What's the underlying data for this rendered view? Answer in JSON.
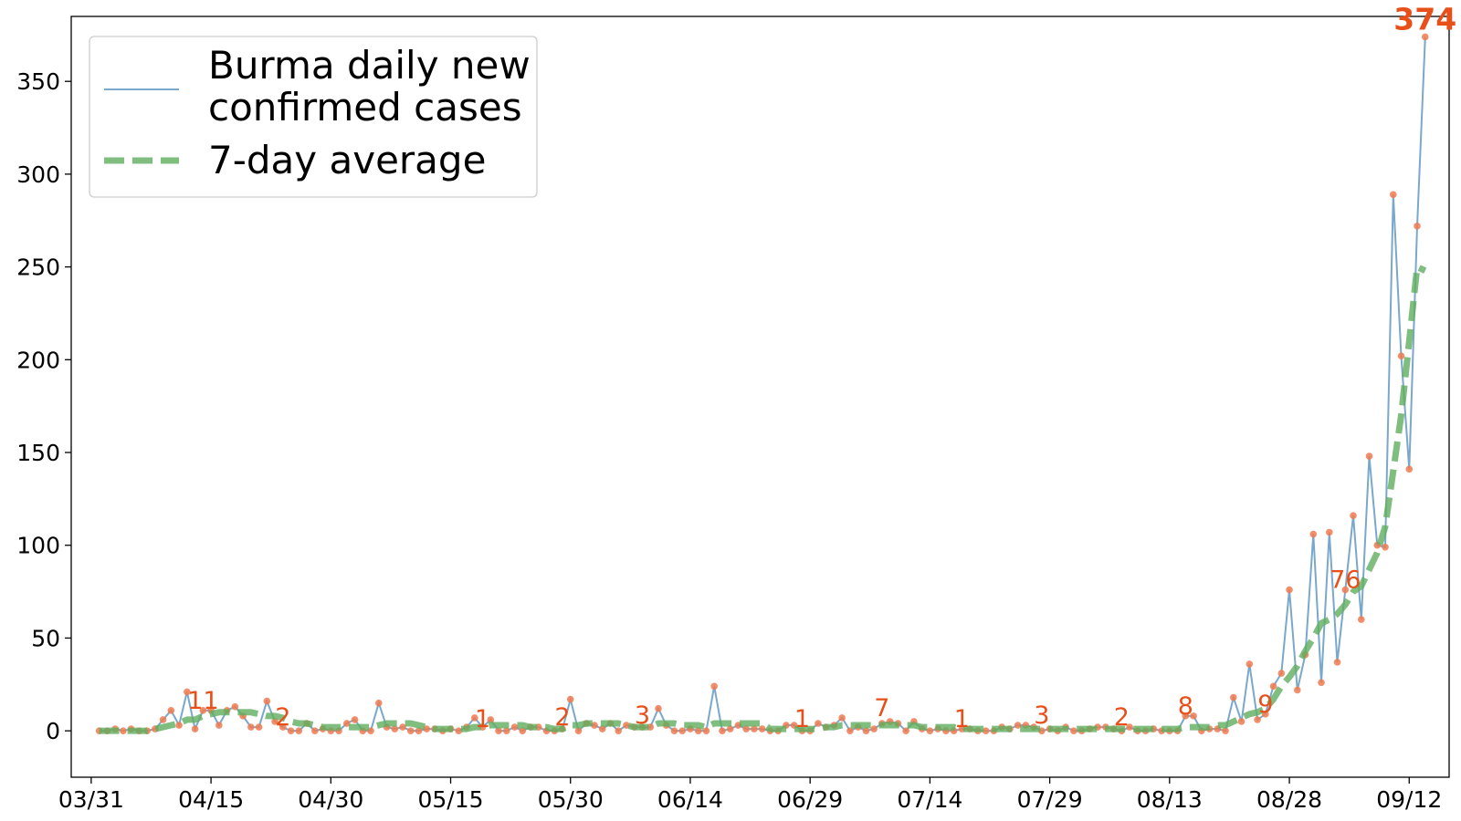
{
  "chart_data": {
    "type": "line",
    "title": "",
    "xlabel": "",
    "ylabel": "",
    "x_start": "03/31",
    "x_ticks": [
      "03/31",
      "04/15",
      "04/30",
      "05/15",
      "05/30",
      "06/14",
      "06/29",
      "07/14",
      "07/29",
      "08/13",
      "08/28",
      "09/12"
    ],
    "x_tick_day_step": 15,
    "ylim": [
      -25,
      385
    ],
    "y_ticks": [
      0,
      50,
      100,
      150,
      200,
      250,
      300,
      350
    ],
    "grid": false,
    "legend": {
      "placement": "top-left",
      "entries": [
        "Burma daily new\nconfirmed cases",
        "7-day average"
      ]
    },
    "colors": {
      "daily_line": "#7aa8cc",
      "marker": "#f07a50",
      "average": "#5fae5f",
      "annotation": "#e8501a"
    },
    "series": [
      {
        "name": "Burma daily new\nconfirmed cases",
        "x_day_offset_start": 1,
        "values": [
          0,
          0,
          1,
          0,
          1,
          0,
          0,
          1,
          6,
          11,
          3,
          21,
          1,
          11,
          11,
          3,
          11,
          13,
          8,
          2,
          2,
          16,
          5,
          2,
          0,
          0,
          4,
          0,
          1,
          0,
          0,
          4,
          6,
          0,
          0,
          15,
          2,
          1,
          2,
          0,
          0,
          1,
          1,
          0,
          1,
          0,
          2,
          7,
          2,
          6,
          0,
          0,
          2,
          0,
          2,
          2,
          0,
          0,
          1,
          17,
          0,
          4,
          3,
          1,
          4,
          0,
          3,
          2,
          2,
          2,
          12,
          3,
          0,
          0,
          1,
          0,
          0,
          24,
          0,
          1,
          3,
          1,
          1,
          1,
          0,
          0,
          3,
          3,
          0,
          0,
          4,
          2,
          3,
          7,
          0,
          2,
          0,
          1,
          4,
          5,
          4,
          0,
          5,
          1,
          0,
          1,
          0,
          0,
          1,
          1,
          0,
          0,
          0,
          2,
          1,
          3,
          3,
          2,
          0,
          1,
          0,
          2,
          0,
          0,
          1,
          2,
          2,
          1,
          0,
          2,
          0,
          0,
          1,
          0,
          0,
          0,
          8,
          8,
          0,
          1,
          1,
          0,
          18,
          5,
          36,
          6,
          9,
          24,
          31,
          76,
          22,
          41,
          106,
          26,
          107,
          37,
          76,
          116,
          60,
          148,
          100,
          99,
          289,
          202,
          141,
          272,
          374
        ]
      },
      {
        "name": "7-day average",
        "x_day_offset_start": 1,
        "values": [
          0,
          0,
          0,
          0,
          0,
          0,
          0,
          1,
          2,
          3,
          4,
          6,
          6,
          8,
          9,
          10,
          10,
          10,
          10,
          10,
          9,
          8,
          8,
          7,
          5,
          4,
          4,
          3,
          2,
          2,
          2,
          2,
          2,
          2,
          2,
          3,
          4,
          4,
          4,
          4,
          3,
          2,
          1,
          1,
          1,
          1,
          1,
          2,
          2,
          3,
          3,
          3,
          3,
          3,
          2,
          2,
          2,
          1,
          1,
          3,
          3,
          4,
          4,
          4,
          4,
          4,
          3,
          2,
          2,
          2,
          4,
          4,
          4,
          3,
          3,
          3,
          2,
          4,
          4,
          4,
          4,
          4,
          4,
          4,
          1,
          1,
          1,
          1,
          1,
          1,
          1,
          2,
          2,
          3,
          3,
          3,
          3,
          3,
          3,
          3,
          3,
          3,
          3,
          2,
          2,
          2,
          2,
          2,
          1,
          1,
          1,
          1,
          1,
          1,
          1,
          1,
          1,
          1,
          1,
          1,
          1,
          1,
          1,
          1,
          1,
          1,
          1,
          1,
          1,
          1,
          1,
          1,
          1,
          1,
          1,
          1,
          2,
          2,
          2,
          2,
          3,
          3,
          5,
          7,
          9,
          10,
          12,
          17,
          24,
          29,
          35,
          43,
          50,
          58,
          60,
          63,
          68,
          75,
          78,
          87,
          96,
          110,
          140,
          170,
          210,
          250,
          248
        ]
      }
    ],
    "annotations": [
      {
        "text": "11",
        "x_day_offset": 14,
        "y": 11
      },
      {
        "text": "2",
        "x_day_offset": 24,
        "y": 2
      },
      {
        "text": "1",
        "x_day_offset": 49,
        "y": 1
      },
      {
        "text": "2",
        "x_day_offset": 59,
        "y": 2
      },
      {
        "text": "3",
        "x_day_offset": 69,
        "y": 3
      },
      {
        "text": "1",
        "x_day_offset": 89,
        "y": 1
      },
      {
        "text": "7",
        "x_day_offset": 99,
        "y": 7
      },
      {
        "text": "1",
        "x_day_offset": 109,
        "y": 1
      },
      {
        "text": "3",
        "x_day_offset": 119,
        "y": 3
      },
      {
        "text": "2",
        "x_day_offset": 129,
        "y": 2
      },
      {
        "text": "8",
        "x_day_offset": 137,
        "y": 8
      },
      {
        "text": "9",
        "x_day_offset": 147,
        "y": 9
      },
      {
        "text": "76",
        "x_day_offset": 157,
        "y": 76
      },
      {
        "text": "374",
        "x_day_offset": 167,
        "y": 374,
        "bold": true
      }
    ]
  }
}
